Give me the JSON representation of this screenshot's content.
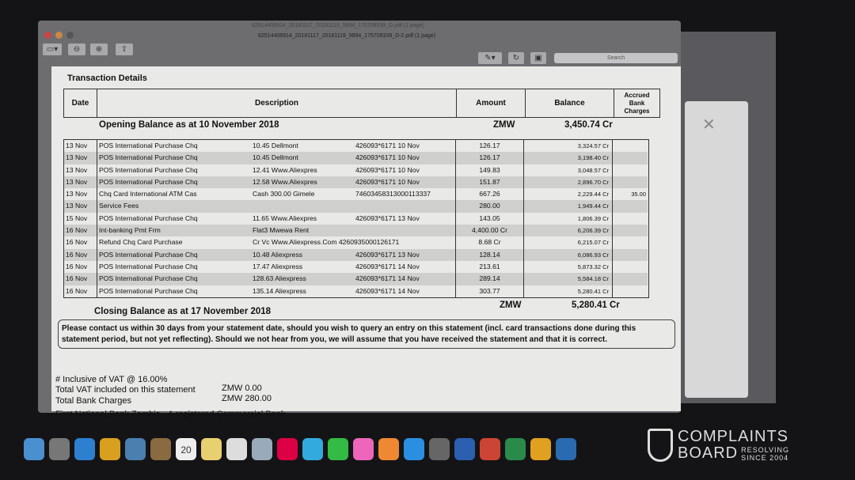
{
  "window": {
    "title_back": "62514408914_20181117_20181119_9894_175709339_D.pdf (1 page)",
    "title": "62514408914_20181117_20181119_9894_175709339_D-2.pdf (1 page)",
    "search_placeholder": "Search",
    "toolbar": [
      "sidebar-icon",
      "zoom-out-icon",
      "zoom-in-icon",
      "share-icon"
    ]
  },
  "statement": {
    "section_title": "Transaction Details",
    "headers": {
      "date": "Date",
      "description": "Description",
      "amount": "Amount",
      "balance": "Balance",
      "accrued": "Accrued Bank Charges"
    },
    "opening": {
      "label": "Opening Balance as at 10 November 2018",
      "currency": "ZMW",
      "balance": "3,450.74 Cr"
    },
    "rows": [
      {
        "date": "13 Nov",
        "type": "POS International Purchase Chq",
        "detail": "10.45 Dellmont",
        "ref": "426093*6171  10 Nov",
        "amount": "126.17",
        "balance": "3,324.57 Cr",
        "accrued": ""
      },
      {
        "date": "13 Nov",
        "type": "POS International Purchase Chq",
        "detail": "10.45 Dellmont",
        "ref": "426093*6171  10 Nov",
        "amount": "126.17",
        "balance": "3,198.40 Cr",
        "accrued": ""
      },
      {
        "date": "13 Nov",
        "type": "POS International Purchase Chq",
        "detail": "12.41 Www.Aliexpres",
        "ref": "426093*6171  10 Nov",
        "amount": "149.83",
        "balance": "3,048.57 Cr",
        "accrued": ""
      },
      {
        "date": "13 Nov",
        "type": "POS International Purchase Chq",
        "detail": "12.58 Www.Aliexpres",
        "ref": "426093*6171  10 Nov",
        "amount": "151.87",
        "balance": "2,896.70 Cr",
        "accrued": ""
      },
      {
        "date": "13 Nov",
        "type": "Chq Card International ATM Cas",
        "detail": "Cash  300.00 Gimele",
        "ref": "74603458313000113337",
        "amount": "667.26",
        "balance": "2,229.44 Cr",
        "accrued": "35.00"
      },
      {
        "date": "13 Nov",
        "type": "Service Fees",
        "detail": "",
        "ref": "",
        "amount": "280.00",
        "balance": "1,949.44 Cr",
        "accrued": ""
      },
      {
        "date": "15 Nov",
        "type": "POS International Purchase Chq",
        "detail": "11.65 Www.Aliexpres",
        "ref": "426093*6171  13 Nov",
        "amount": "143.05",
        "balance": "1,806.39 Cr",
        "accrued": ""
      },
      {
        "date": "16 Nov",
        "type": "Int-banking Pmt Frm",
        "detail": "Flat3 Mwewa Rent",
        "ref": "",
        "amount": "4,400.00 Cr",
        "balance": "6,206.39 Cr",
        "accrued": ""
      },
      {
        "date": "16 Nov",
        "type": "Refund Chq Card Purchase",
        "detail": "Cr Vc  Www.Aliexpress.Com 4260935000126171",
        "ref": "",
        "amount": "8.68 Cr",
        "balance": "6,215.07 Cr",
        "accrued": ""
      },
      {
        "date": "16 Nov",
        "type": "POS International Purchase Chq",
        "detail": "10.48 Aliexpress",
        "ref": "426093*6171  13 Nov",
        "amount": "128.14",
        "balance": "6,086.93 Cr",
        "accrued": ""
      },
      {
        "date": "16 Nov",
        "type": "POS International Purchase Chq",
        "detail": "17.47 Aliexpress",
        "ref": "426093*6171  14 Nov",
        "amount": "213.61",
        "balance": "5,873.32 Cr",
        "accrued": ""
      },
      {
        "date": "16 Nov",
        "type": "POS International Purchase Chq",
        "detail": "128.63 Aliexpress",
        "ref": "426093*6171  14 Nov",
        "amount": "289.14",
        "balance": "5,584.18 Cr",
        "accrued": ""
      },
      {
        "date": "16 Nov",
        "type": "POS International Purchase Chq",
        "detail": "135.14 Aliexpress",
        "ref": "426093*6171  14 Nov",
        "amount": "303.77",
        "balance": "5,280.41 Cr",
        "accrued": ""
      }
    ],
    "closing": {
      "label": "Closing Balance as at 17 November 2018",
      "currency": "ZMW",
      "balance": "5,280.41 Cr"
    },
    "notice": "Please contact us within 30 days from your statement date, should you wish to query an entry on this statement (incl. card transactions done during this statement period, but not yet reflecting). Should we not hear from you, we will assume that you have received the statement and that it is correct.",
    "vat_note": "# Inclusive of VAT @ 16.00%",
    "total_vat_label": "Total VAT included on this statement",
    "total_vat": "ZMW 0.00",
    "total_charges_label": "Total Bank Charges",
    "total_charges": "ZMW 280.00",
    "bank_line": "First National Bank Zambia - A registered Commercial Bank"
  },
  "dock": {
    "calendar_day": "20",
    "apps": [
      "finder",
      "launchpad",
      "safari",
      "chrome",
      "preview",
      "notes",
      "calendar",
      "stickies",
      "reminders",
      "photos-app",
      "photos",
      "messages",
      "facetime",
      "itunes",
      "ibooks",
      "app-store",
      "system-preferences",
      "word",
      "powerpoint",
      "excel",
      "outlook",
      "other"
    ],
    "colors": [
      "#4a8fd0",
      "#777",
      "#2d7fd0",
      "#d9a020",
      "#4a7fb0",
      "#8a6a40",
      "#eee",
      "#e8d070",
      "#ddd",
      "#9ab",
      "#d04",
      "#3ad",
      "#3b4",
      "#e6b",
      "#e83",
      "#2a8fe0",
      "#666",
      "#2b5fb0",
      "#c43",
      "#2a8a4a",
      "#e0a020",
      "#2a6ab0"
    ]
  },
  "watermark": {
    "line1": "COMPLAINTS",
    "line2": "BOARD",
    "tag1": "RESOLVING",
    "tag2": "SINCE 2004"
  }
}
